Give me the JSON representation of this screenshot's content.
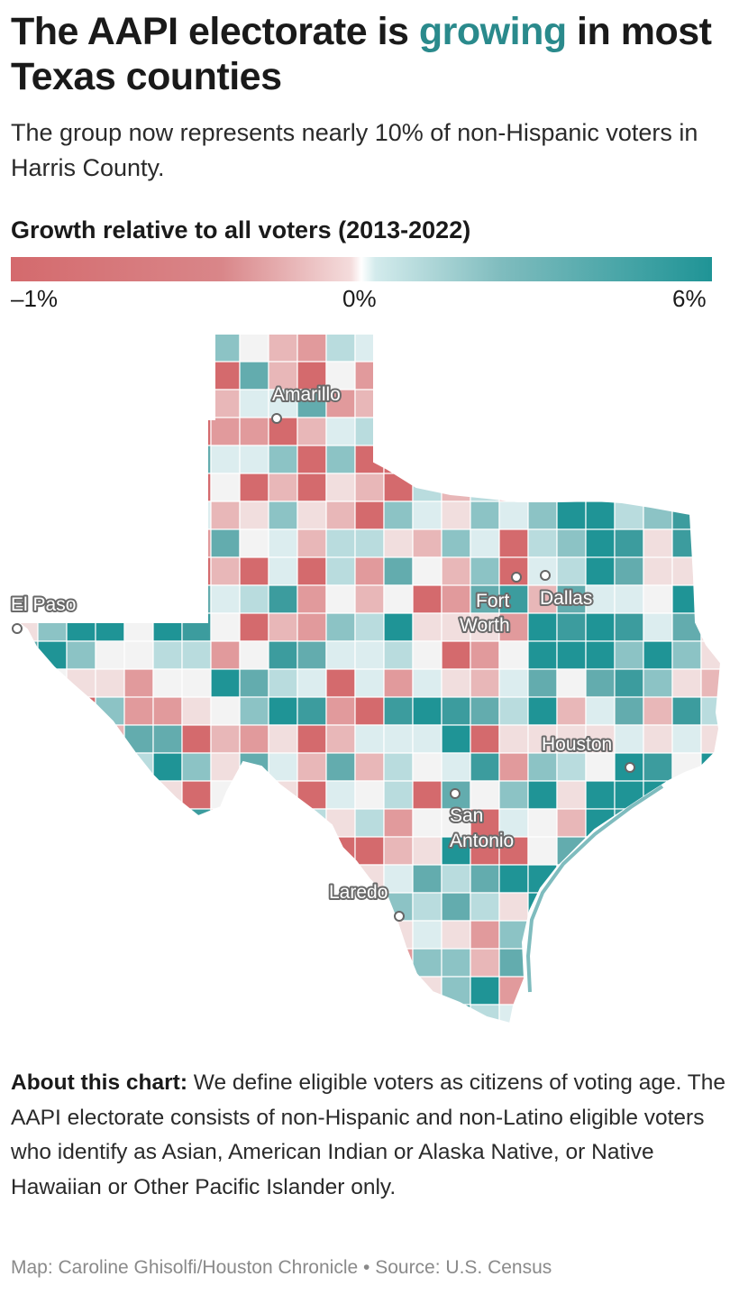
{
  "header": {
    "title_before": "The AAPI electorate is ",
    "title_highlight": "growing",
    "title_after": " in most Texas counties",
    "subtitle": "The group now represents nearly 10% of non-Hispanic voters in Harris County."
  },
  "legend": {
    "title": "Growth relative to all voters (2013-2022)",
    "min_label": "–1%",
    "mid_label": "0%",
    "max_label": "6%",
    "min_value": -1,
    "max_value": 6,
    "colors": {
      "negative": "#d46a6d",
      "neutral": "#f5f5f5",
      "positive": "#1f9496"
    }
  },
  "map": {
    "cities": [
      {
        "name": "Amarillo"
      },
      {
        "name": "El Paso"
      },
      {
        "name": "Fort Worth"
      },
      {
        "name": "Dallas"
      },
      {
        "name": "Houston"
      },
      {
        "name": "San Antonio"
      },
      {
        "name": "Laredo"
      }
    ]
  },
  "about": {
    "label": "About this chart:",
    "text": " We define eligible voters as citizens of voting age. The AAPI electorate consists of non-Hispanic and non-Latino eligible voters who identify as Asian, American Indian or Alaska Native, or Native Hawaiian or Other Pacific Islander only."
  },
  "credit": "Map: Caroline Ghisolfi/Houston Chronicle • Source: U.S. Census"
}
